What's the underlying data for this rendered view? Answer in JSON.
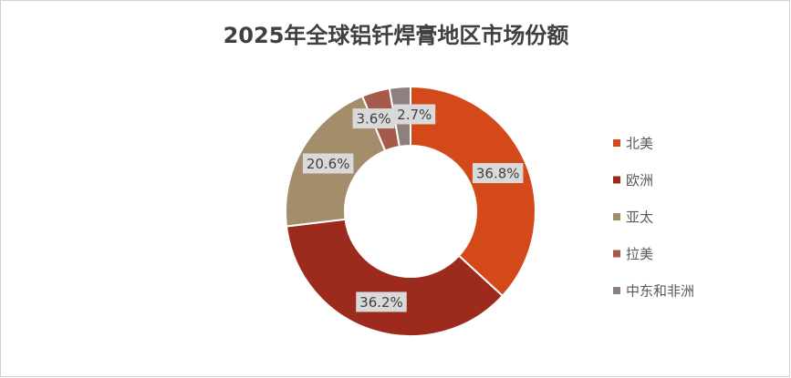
{
  "chart_data": {
    "type": "donut",
    "title": "2025年全球铝钎焊膏地区市场份额",
    "categories": [
      "北美",
      "欧洲",
      "亚太",
      "拉美",
      "中东和非洲"
    ],
    "values": [
      36.8,
      36.2,
      20.6,
      3.6,
      2.7
    ],
    "value_labels": [
      "36.8%",
      "36.2%",
      "20.6%",
      "3.6%",
      "2.7%"
    ],
    "colors": [
      "#D4491A",
      "#9C2B1E",
      "#A38D6B",
      "#A65B4A",
      "#8F8080"
    ],
    "legend": "right"
  }
}
